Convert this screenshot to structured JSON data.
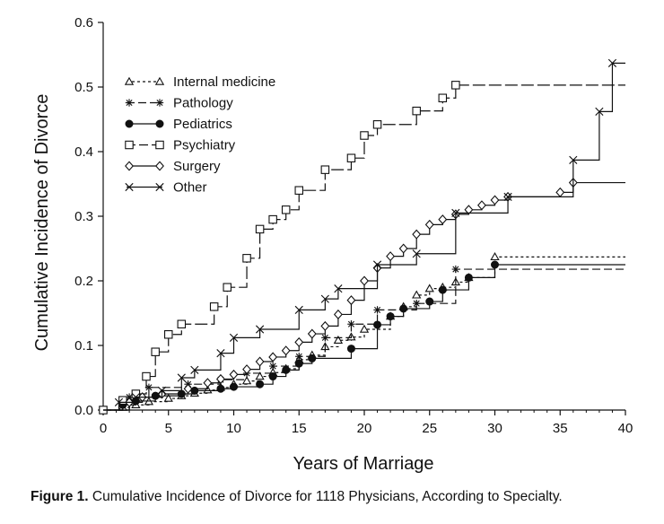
{
  "chart_data": {
    "type": "line",
    "step": true,
    "xlabel": "Years of Marriage",
    "ylabel": "Cumulative Incidence of Divorce",
    "xlim": [
      0,
      40
    ],
    "ylim": [
      0,
      0.6
    ],
    "xticks": [
      0,
      5,
      10,
      15,
      20,
      25,
      30,
      35,
      40
    ],
    "yticks": [
      "0.0",
      "0.1",
      "0.2",
      "0.3",
      "0.4",
      "0.5",
      "0.6"
    ],
    "legend_position": "top-left",
    "series": [
      {
        "name": "Internal medicine",
        "marker": "triangle",
        "dash": "3,3",
        "points": [
          [
            0,
            0
          ],
          [
            1.5,
            0.004
          ],
          [
            2.5,
            0.008
          ],
          [
            3.5,
            0.013
          ],
          [
            5,
            0.018
          ],
          [
            6,
            0.022
          ],
          [
            7,
            0.026
          ],
          [
            8,
            0.031
          ],
          [
            9,
            0.035
          ],
          [
            10,
            0.04
          ],
          [
            11,
            0.045
          ],
          [
            12,
            0.052
          ],
          [
            13,
            0.058
          ],
          [
            14,
            0.064
          ],
          [
            15,
            0.078
          ],
          [
            16,
            0.085
          ],
          [
            17,
            0.098
          ],
          [
            18,
            0.108
          ],
          [
            19,
            0.113
          ],
          [
            20,
            0.125
          ],
          [
            22,
            0.145
          ],
          [
            23,
            0.16
          ],
          [
            24,
            0.178
          ],
          [
            25,
            0.188
          ],
          [
            26,
            0.19
          ],
          [
            27,
            0.198
          ],
          [
            28,
            0.205
          ],
          [
            30,
            0.237
          ]
        ],
        "end": [
          40,
          0.237
        ]
      },
      {
        "name": "Pathology",
        "marker": "star",
        "dash": "9,4",
        "points": [
          [
            0,
            0
          ],
          [
            2,
            0.02
          ],
          [
            3.5,
            0.035
          ],
          [
            6.5,
            0.04
          ],
          [
            9,
            0.047
          ],
          [
            11,
            0.057
          ],
          [
            13,
            0.068
          ],
          [
            15,
            0.083
          ],
          [
            17,
            0.112
          ],
          [
            19,
            0.133
          ],
          [
            21,
            0.155
          ],
          [
            24,
            0.165
          ],
          [
            27,
            0.218
          ]
        ],
        "end": [
          40,
          0.218
        ]
      },
      {
        "name": "Pediatrics",
        "marker": "dot",
        "dash": "",
        "points": [
          [
            0,
            0
          ],
          [
            1.5,
            0.008
          ],
          [
            2.5,
            0.014
          ],
          [
            4,
            0.022
          ],
          [
            6,
            0.025
          ],
          [
            7,
            0.03
          ],
          [
            9,
            0.033
          ],
          [
            10,
            0.036
          ],
          [
            12,
            0.04
          ],
          [
            13,
            0.052
          ],
          [
            14,
            0.062
          ],
          [
            15,
            0.072
          ],
          [
            16,
            0.08
          ],
          [
            19,
            0.095
          ],
          [
            21,
            0.132
          ],
          [
            22,
            0.145
          ],
          [
            23,
            0.157
          ],
          [
            25,
            0.168
          ],
          [
            26,
            0.186
          ],
          [
            28,
            0.205
          ],
          [
            30,
            0.225
          ]
        ],
        "end": [
          40,
          0.225
        ]
      },
      {
        "name": "Psychiatry",
        "marker": "square",
        "dash": "14,4",
        "points": [
          [
            0,
            0
          ],
          [
            1.5,
            0.015
          ],
          [
            2.5,
            0.025
          ],
          [
            3.3,
            0.052
          ],
          [
            4,
            0.09
          ],
          [
            5,
            0.117
          ],
          [
            6,
            0.133
          ],
          [
            8.5,
            0.16
          ],
          [
            9.5,
            0.19
          ],
          [
            11,
            0.235
          ],
          [
            12,
            0.28
          ],
          [
            13,
            0.295
          ],
          [
            14,
            0.31
          ],
          [
            15,
            0.34
          ],
          [
            17,
            0.372
          ],
          [
            19,
            0.39
          ],
          [
            20,
            0.425
          ],
          [
            21,
            0.442
          ],
          [
            24,
            0.463
          ],
          [
            26,
            0.483
          ],
          [
            27,
            0.503
          ]
        ],
        "end": [
          40,
          0.503
        ]
      },
      {
        "name": "Surgery",
        "marker": "diamond",
        "dash": "",
        "points": [
          [
            0,
            0
          ],
          [
            2,
            0.012
          ],
          [
            3,
            0.02
          ],
          [
            4.5,
            0.025
          ],
          [
            6.5,
            0.033
          ],
          [
            8,
            0.042
          ],
          [
            9,
            0.048
          ],
          [
            10,
            0.055
          ],
          [
            11,
            0.063
          ],
          [
            12,
            0.075
          ],
          [
            13,
            0.082
          ],
          [
            14,
            0.092
          ],
          [
            15,
            0.105
          ],
          [
            16,
            0.118
          ],
          [
            17,
            0.13
          ],
          [
            18,
            0.148
          ],
          [
            19,
            0.17
          ],
          [
            20,
            0.2
          ],
          [
            21,
            0.22
          ],
          [
            22,
            0.238
          ],
          [
            23,
            0.25
          ],
          [
            24,
            0.272
          ],
          [
            25,
            0.287
          ],
          [
            26,
            0.295
          ],
          [
            27,
            0.303
          ],
          [
            28,
            0.31
          ],
          [
            29,
            0.317
          ],
          [
            30,
            0.325
          ],
          [
            31,
            0.33
          ],
          [
            35,
            0.337
          ],
          [
            36,
            0.352
          ]
        ],
        "end": [
          40,
          0.352
        ]
      },
      {
        "name": "Other",
        "marker": "x",
        "dash": "",
        "points": [
          [
            0,
            0
          ],
          [
            1.2,
            0.012
          ],
          [
            2.5,
            0.02
          ],
          [
            4.5,
            0.03
          ],
          [
            6,
            0.05
          ],
          [
            7,
            0.062
          ],
          [
            9,
            0.088
          ],
          [
            10,
            0.112
          ],
          [
            12,
            0.125
          ],
          [
            15,
            0.155
          ],
          [
            17,
            0.172
          ],
          [
            18,
            0.188
          ],
          [
            21,
            0.225
          ],
          [
            24,
            0.242
          ],
          [
            27,
            0.305
          ],
          [
            31,
            0.33
          ],
          [
            36,
            0.387
          ],
          [
            38,
            0.462
          ],
          [
            39,
            0.537
          ]
        ],
        "end": [
          40,
          0.537
        ]
      }
    ]
  },
  "caption": {
    "label": "Figure 1.",
    "text": " Cumulative Incidence of Divorce for 1118 Physicians, According to Specialty."
  }
}
